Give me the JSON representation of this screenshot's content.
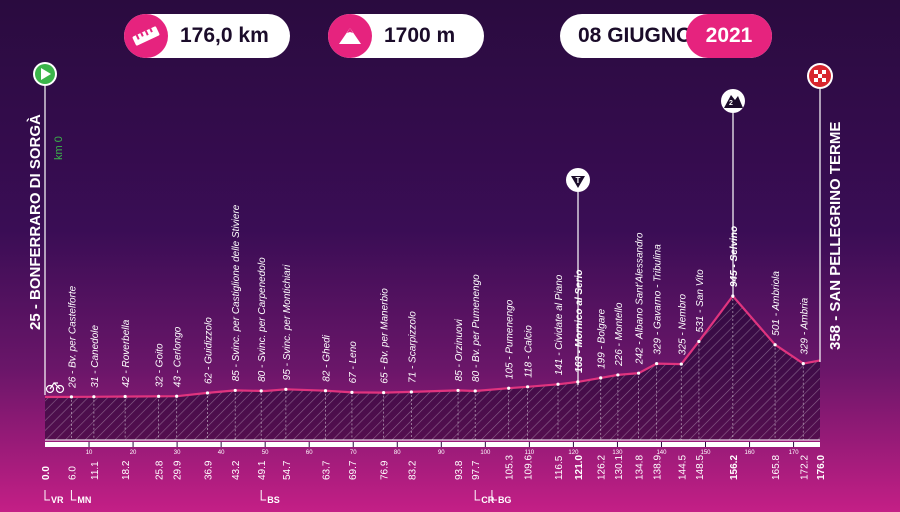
{
  "header": {
    "distance": "176,0 km",
    "elevation": "1700 m",
    "date": "08 GIUGNO",
    "year": "2021",
    "distance_icon": "ruler-icon",
    "elevation_icon": "mountain-icon"
  },
  "start": {
    "label": "25 - BONFERRARO DI SORGÀ",
    "km": "km 0",
    "icon": "start-play-icon"
  },
  "finish": {
    "label": "358 - SAN PELLEGRINO TERME",
    "icon": "checkered-flag-icon"
  },
  "markers": {
    "gpm_label": "2",
    "sprint_label": "T"
  },
  "colors": {
    "accent": "#e6237e",
    "line": "#e0347f",
    "start": "#3bb54a",
    "finish": "#d8262e"
  },
  "chart_data": {
    "type": "area",
    "xlabel": "",
    "ylabel": "",
    "xlim": [
      0,
      176
    ],
    "ticks": [
      10,
      20,
      30,
      40,
      50,
      60,
      70,
      80,
      90,
      100,
      110,
      120,
      130,
      140,
      150,
      160,
      170
    ],
    "region_marks": [
      {
        "km": 0.0,
        "label": "VR"
      },
      {
        "km": 6.0,
        "label": "MN"
      },
      {
        "km": 49.1,
        "label": "BS"
      },
      {
        "km": 97.7,
        "label": "CR"
      },
      {
        "km": 101.5,
        "label": "BG"
      }
    ],
    "profile": [
      [
        0,
        25
      ],
      [
        10,
        27
      ],
      [
        20,
        30
      ],
      [
        30,
        32
      ],
      [
        36.9,
        62
      ],
      [
        43.2,
        85
      ],
      [
        50,
        80
      ],
      [
        54.7,
        95
      ],
      [
        63.7,
        82
      ],
      [
        69.7,
        67
      ],
      [
        76.9,
        65
      ],
      [
        83.2,
        71
      ],
      [
        93.8,
        85
      ],
      [
        97.7,
        80
      ],
      [
        105.3,
        105
      ],
      [
        109.6,
        118
      ],
      [
        116.5,
        141
      ],
      [
        121,
        163
      ],
      [
        126.2,
        199
      ],
      [
        130.1,
        226
      ],
      [
        134.8,
        242
      ],
      [
        138.9,
        329
      ],
      [
        144.5,
        325
      ],
      [
        148.5,
        531
      ],
      [
        156.2,
        945
      ],
      [
        165.8,
        501
      ],
      [
        172.2,
        329
      ],
      [
        176,
        358
      ]
    ],
    "points": [
      {
        "km": "0.0",
        "name": "",
        "bold": true
      },
      {
        "km": "6.0",
        "name": "26 - Bv. per Castelforte"
      },
      {
        "km": "11.1",
        "name": "31 - Canedole"
      },
      {
        "km": "18.2",
        "name": "42 - Roverbella"
      },
      {
        "km": "25.8",
        "name": "32 - Goito"
      },
      {
        "km": "29.9",
        "name": "43 - Cerlongo"
      },
      {
        "km": "36.9",
        "name": "62 - Guidizzolo"
      },
      {
        "km": "43.2",
        "name": "85 - Svinc. per Castiglione delle Stiviere"
      },
      {
        "km": "49.1",
        "name": "80 - Svinc. per Carpenedolo"
      },
      {
        "km": "54.7",
        "name": "95 - Svinc. per Montichiari"
      },
      {
        "km": "63.7",
        "name": "82 - Ghedi"
      },
      {
        "km": "69.7",
        "name": "67 - Leno"
      },
      {
        "km": "76.9",
        "name": "65 - Bv. per Manerbio"
      },
      {
        "km": "83.2",
        "name": "71 - Scarpizzolo"
      },
      {
        "km": "93.8",
        "name": "85 - Orzinuovi"
      },
      {
        "km": "97.7",
        "name": "80 - Bv. per Pumenengo"
      },
      {
        "km": "105.3",
        "name": "105 - Pumenengo"
      },
      {
        "km": "109.6",
        "name": "118 - Calcio"
      },
      {
        "km": "116.5",
        "name": "141 - Cividate al Piano"
      },
      {
        "km": "121.0",
        "name": "163 - Mornico al Serio",
        "bold": true
      },
      {
        "km": "126.2",
        "name": "199 - Bolgare"
      },
      {
        "km": "130.1",
        "name": "226 - Montello"
      },
      {
        "km": "134.8",
        "name": "242 - Albano Sant'Alessandro"
      },
      {
        "km": "138.9",
        "name": "329 - Gavarno - Tribulina"
      },
      {
        "km": "144.5",
        "name": "325 - Nembro"
      },
      {
        "km": "148.5",
        "name": "531 - San Vito"
      },
      {
        "km": "156.2",
        "name": "945 - Selvino",
        "bold": true
      },
      {
        "km": "165.8",
        "name": "501 - Ambriola"
      },
      {
        "km": "172.2",
        "name": "329 - Ambria"
      },
      {
        "km": "176.0",
        "name": "",
        "bold": true
      }
    ]
  }
}
